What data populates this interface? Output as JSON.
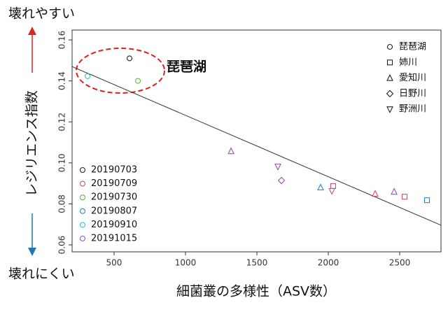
{
  "chart_data": {
    "type": "scatter",
    "top_label": "壊れやすい",
    "bottom_label": "壊れにくい",
    "ylabel": "レジリエンス指数",
    "xlabel": "細菌叢の多様性（ASV数）",
    "annotation": "琵琶湖",
    "xlim": [
      206,
      2789
    ],
    "ylim": [
      0.0566,
      0.1648
    ],
    "xticks": [
      500,
      1000,
      1500,
      2000,
      2500
    ],
    "yticks": [
      0.06,
      0.08,
      {
        "value": 0.1,
        "label": "0.10"
      },
      0.12,
      0.14,
      0.16
    ],
    "sites": [
      {
        "name": "琵琶湖",
        "marker": "circle"
      },
      {
        "name": "姉川",
        "marker": "square"
      },
      {
        "name": "愛知川",
        "marker": "triangle"
      },
      {
        "name": "日野川",
        "marker": "diamond"
      },
      {
        "name": "野洲川",
        "marker": "triangle-down"
      }
    ],
    "series": [
      {
        "name": "20190703",
        "color": "#222222",
        "x": [
          608
        ],
        "y": [
          0.151
        ],
        "markers": [
          "circle"
        ]
      },
      {
        "name": "20190709",
        "color": "#c8507a",
        "x": [
          2034,
          2534,
          2328,
          2025
        ],
        "y": [
          0.0887,
          0.0835,
          0.0849,
          0.0863
        ],
        "markers": [
          "square",
          "square",
          "triangle",
          "triangle-down"
        ]
      },
      {
        "name": "20190730",
        "color": "#6ab04c",
        "x": [
          667
        ],
        "y": [
          0.14
        ],
        "markers": [
          "circle"
        ]
      },
      {
        "name": "20190807",
        "color": "#2e86c1",
        "x": [
          1946,
          2691
        ],
        "y": [
          0.088,
          0.0818
        ],
        "markers": [
          "triangle",
          "square"
        ]
      },
      {
        "name": "20190910",
        "color": "#2ec4d6",
        "x": [
          314
        ],
        "y": [
          0.1423
        ],
        "markers": [
          "circle"
        ]
      },
      {
        "name": "20191015",
        "color": "#9b4fb5",
        "x": [
          1319,
          2461,
          1672,
          1647
        ],
        "y": [
          0.1057,
          0.0859,
          0.0914,
          0.0982
        ],
        "markers": [
          "triangle",
          "triangle",
          "diamond",
          "triangle-down"
        ]
      }
    ],
    "fit": {
      "x": [
        206,
        2789
      ],
      "y": [
        0.147,
        0.0696
      ]
    }
  }
}
